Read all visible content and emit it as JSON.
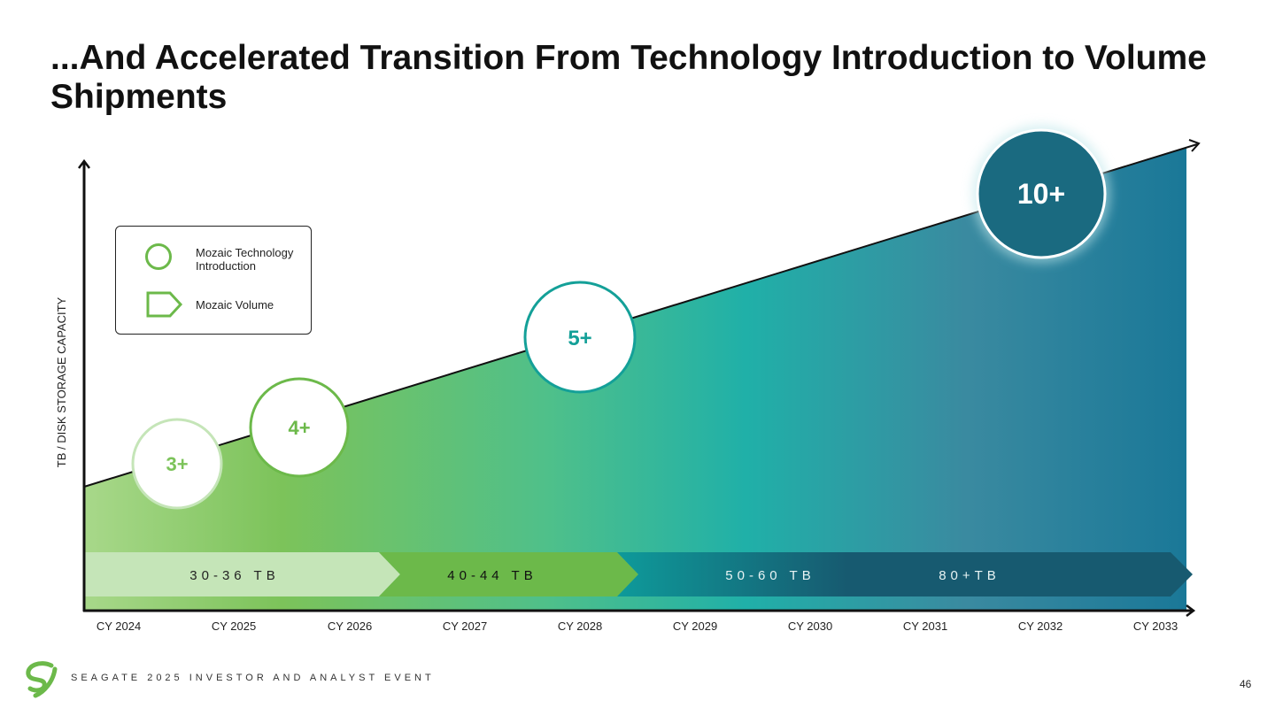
{
  "title": "...And Accelerated Transition From Technology Introduction to Volume Shipments",
  "y_axis_label": "TB / DISK STORAGE CAPACITY",
  "legend": {
    "items": [
      {
        "label": "Mozaic Technology Introduction",
        "icon": "circle-outline-icon"
      },
      {
        "label": "Mozaic Volume",
        "icon": "pentagon-arrow-icon"
      }
    ]
  },
  "x_axis": [
    "CY 2024",
    "CY 2025",
    "CY 2026",
    "CY 2027",
    "CY 2028",
    "CY 2029",
    "CY 2030",
    "CY 2031",
    "CY 2032",
    "CY 2033"
  ],
  "milestones": [
    {
      "label": "3+",
      "year": "CY 2024"
    },
    {
      "label": "4+",
      "year": "CY 2025"
    },
    {
      "label": "5+",
      "year": "CY 2028"
    },
    {
      "label": "10+",
      "year": "CY 2032"
    }
  ],
  "volume_bands": [
    {
      "label": "30-36 TB",
      "color": "#c5e5b8"
    },
    {
      "label": "40-44 TB",
      "color": "#6cb94a"
    },
    {
      "label": "50-60 TB",
      "color": "#0e9a9a"
    },
    {
      "label": "80+TB",
      "color": "#175a70"
    }
  ],
  "colors": {
    "light_green": "#a8d88a",
    "green": "#6cb94a",
    "teal": "#14a098",
    "dark_teal": "#1a6a80"
  },
  "footer": "SEAGATE 2025 INVESTOR AND ANALYST EVENT",
  "page_number": "46"
}
